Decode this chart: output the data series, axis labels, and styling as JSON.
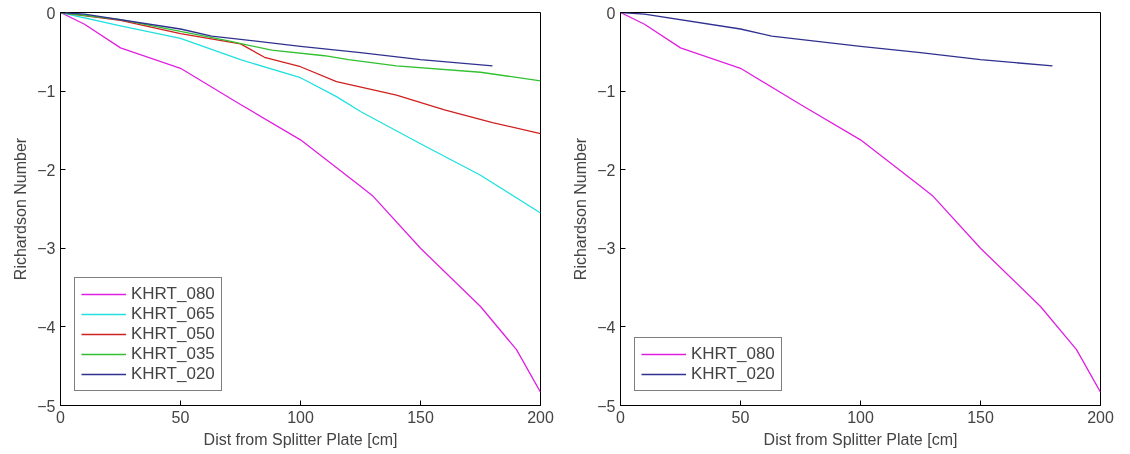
{
  "chart_data": [
    {
      "type": "line",
      "xlabel": "Dist from Splitter Plate [cm]",
      "ylabel": "Richardson Number",
      "xlim": [
        0,
        200
      ],
      "ylim": [
        -5,
        0
      ],
      "xticks": [
        0,
        50,
        100,
        150,
        200
      ],
      "yticks": [
        -5,
        -4,
        -3,
        -2,
        -1,
        0
      ],
      "grid": false,
      "legend": "bottom left",
      "series": [
        {
          "name": "KHRT_080",
          "color": "#e020e0",
          "x": [
            0,
            10,
            25,
            50,
            75,
            100,
            125,
            130,
            150,
            175,
            190,
            200
          ],
          "values": [
            0,
            -0.15,
            -0.45,
            -0.71,
            -1.17,
            -1.62,
            -2.21,
            -2.33,
            -3.0,
            -3.74,
            -4.29,
            -4.83
          ]
        },
        {
          "name": "KHRT_065",
          "color": "#20e0e0",
          "x": [
            0,
            25,
            50,
            75,
            100,
            115,
            125,
            150,
            175,
            200
          ],
          "values": [
            0,
            -0.17,
            -0.33,
            -0.6,
            -0.83,
            -1.07,
            -1.26,
            -1.67,
            -2.07,
            -2.55
          ]
        },
        {
          "name": "KHRT_050",
          "color": "#d02020",
          "x": [
            0,
            25,
            50,
            75,
            85,
            100,
            115,
            140,
            160,
            180,
            200
          ],
          "values": [
            0,
            -0.1,
            -0.27,
            -0.4,
            -0.57,
            -0.69,
            -0.88,
            -1.05,
            -1.24,
            -1.4,
            -1.54
          ]
        },
        {
          "name": "KHRT_035",
          "color": "#30c030",
          "x": [
            0,
            25,
            50,
            70,
            88,
            110,
            120,
            140,
            175,
            200
          ],
          "values": [
            0,
            -0.09,
            -0.24,
            -0.36,
            -0.48,
            -0.55,
            -0.6,
            -0.68,
            -0.76,
            -0.87
          ]
        },
        {
          "name": "KHRT_020",
          "color": "#303090",
          "x": [
            0,
            10,
            50,
            63,
            100,
            125,
            150,
            180
          ],
          "values": [
            0,
            -0.02,
            -0.21,
            -0.3,
            -0.43,
            -0.51,
            -0.6,
            -0.68
          ]
        }
      ]
    },
    {
      "type": "line",
      "xlabel": "Dist from Splitter Plate [cm]",
      "ylabel": "Richardson Number",
      "xlim": [
        0,
        200
      ],
      "ylim": [
        -5,
        0
      ],
      "xticks": [
        0,
        50,
        100,
        150,
        200
      ],
      "yticks": [
        -5,
        -4,
        -3,
        -2,
        -1,
        0
      ],
      "grid": false,
      "legend": "bottom left",
      "series": [
        {
          "name": "KHRT_080",
          "color": "#e020e0",
          "x": [
            0,
            10,
            25,
            50,
            75,
            100,
            125,
            130,
            150,
            175,
            190,
            200
          ],
          "values": [
            0,
            -0.15,
            -0.45,
            -0.71,
            -1.17,
            -1.62,
            -2.21,
            -2.33,
            -3.0,
            -3.74,
            -4.29,
            -4.83
          ]
        },
        {
          "name": "KHRT_020",
          "color": "#303090",
          "x": [
            0,
            10,
            50,
            63,
            100,
            125,
            150,
            180
          ],
          "values": [
            0,
            -0.02,
            -0.21,
            -0.3,
            -0.43,
            -0.51,
            -0.6,
            -0.68
          ]
        }
      ]
    }
  ]
}
